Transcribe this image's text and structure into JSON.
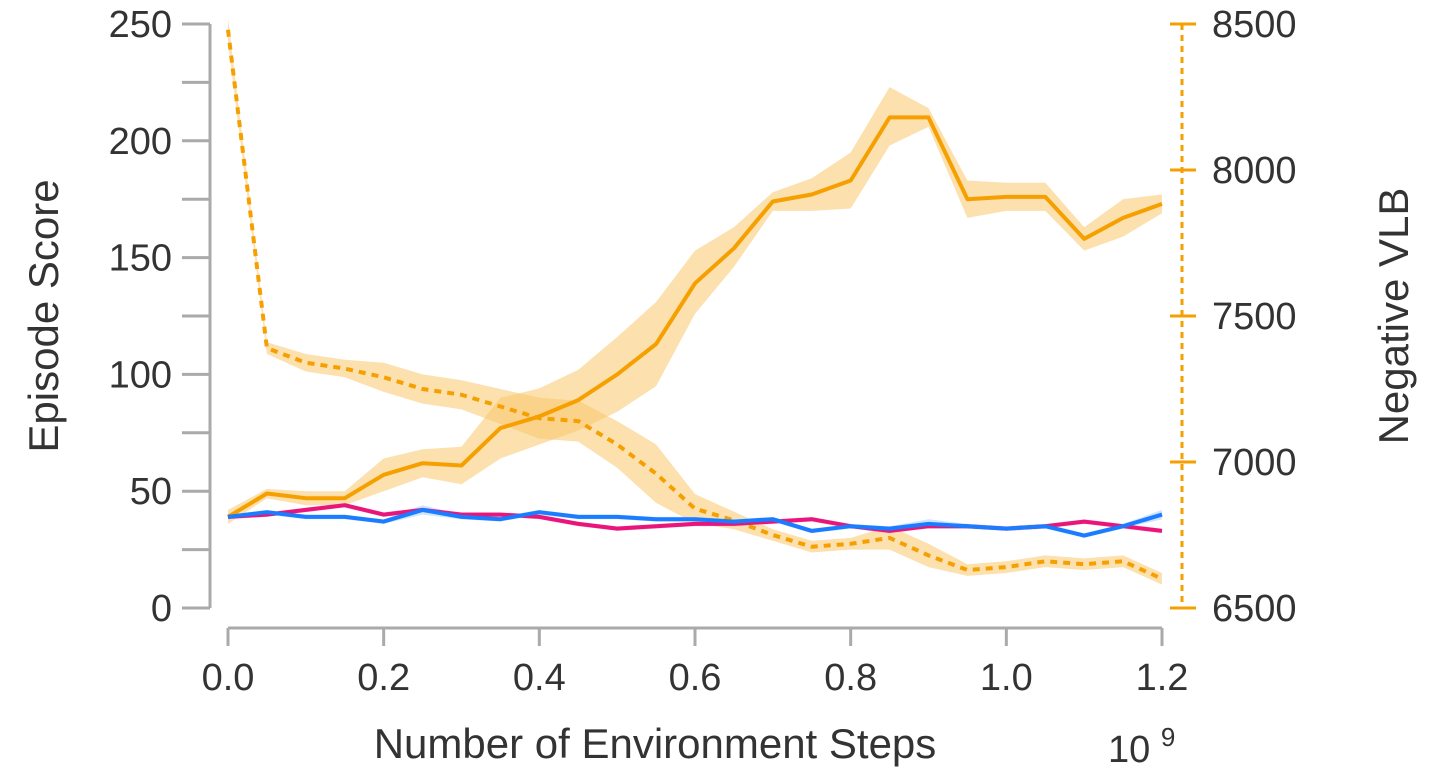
{
  "chart_data": {
    "type": "line",
    "xlabel": "Number of Environment Steps",
    "x_exponent_label": "10",
    "x_exponent_power": "9",
    "ylabel_left": "Episode Score",
    "ylabel_right": "Negative VLB",
    "xlim": [
      0,
      1.2
    ],
    "ylim_left": [
      0,
      250
    ],
    "ylim_right": [
      6500,
      8500
    ],
    "x_ticks": [
      "0.0",
      "0.2",
      "0.4",
      "0.6",
      "0.8",
      "1.0",
      "1.2"
    ],
    "x_tick_values": [
      0,
      0.2,
      0.4,
      0.6,
      0.8,
      1.0,
      1.2
    ],
    "y_left_ticks": [
      "0",
      "50",
      "100",
      "150",
      "200",
      "250"
    ],
    "y_left_tick_values": [
      0,
      50,
      100,
      150,
      200,
      250
    ],
    "y_left_minor_tick_values": [
      25,
      75,
      125,
      175,
      225
    ],
    "y_right_ticks": [
      "6500",
      "7000",
      "7500",
      "8000",
      "8500"
    ],
    "y_right_tick_values": [
      6500,
      7000,
      7500,
      8000,
      8500
    ],
    "x": [
      0,
      0.05,
      0.1,
      0.15,
      0.2,
      0.25,
      0.3,
      0.35,
      0.4,
      0.45,
      0.5,
      0.55,
      0.6,
      0.65,
      0.7,
      0.75,
      0.8,
      0.85,
      0.9,
      0.95,
      1.0,
      1.05,
      1.1,
      1.15,
      1.2
    ],
    "series": [
      {
        "axis": "left",
        "style": "solid",
        "color": "#f5a000",
        "band_color": "#f9c66b",
        "values": [
          39,
          49,
          47,
          47,
          57,
          62,
          61,
          77,
          82,
          89,
          100,
          113,
          139,
          154,
          174,
          177,
          183,
          210,
          210,
          175,
          176,
          176,
          158,
          167,
          173
        ],
        "band": [
          [
            36,
            42
          ],
          [
            47,
            51
          ],
          [
            44,
            50
          ],
          [
            44,
            50
          ],
          [
            50,
            64
          ],
          [
            56,
            68
          ],
          [
            53,
            69
          ],
          [
            64,
            90
          ],
          [
            70,
            94
          ],
          [
            76,
            102
          ],
          [
            84,
            116
          ],
          [
            95,
            131
          ],
          [
            126,
            153
          ],
          [
            146,
            163
          ],
          [
            170,
            178
          ],
          [
            170,
            184
          ],
          [
            171,
            195
          ],
          [
            198,
            223
          ],
          [
            206,
            214
          ],
          [
            167,
            183
          ],
          [
            170,
            182
          ],
          [
            170,
            182
          ],
          [
            153,
            163
          ],
          [
            159,
            175
          ],
          [
            169,
            177
          ]
        ]
      },
      {
        "axis": "right",
        "style": "dashed",
        "color": "#f5a000",
        "band_color": "#f9c66b",
        "values": [
          8480,
          7390,
          7340,
          7320,
          7290,
          7250,
          7230,
          7190,
          7150,
          7140,
          7060,
          6960,
          6840,
          6800,
          6750,
          6710,
          6720,
          6740,
          6680,
          6630,
          6640,
          6660,
          6650,
          6660,
          6600
        ],
        "band": [
          [
            8440,
            8520
          ],
          [
            7370,
            7410
          ],
          [
            7310,
            7370
          ],
          [
            7290,
            7350
          ],
          [
            7240,
            7340
          ],
          [
            7200,
            7300
          ],
          [
            7180,
            7280
          ],
          [
            7130,
            7250
          ],
          [
            7080,
            7220
          ],
          [
            7070,
            7210
          ],
          [
            6980,
            7140
          ],
          [
            6860,
            7060
          ],
          [
            6790,
            6890
          ],
          [
            6770,
            6830
          ],
          [
            6730,
            6770
          ],
          [
            6690,
            6730
          ],
          [
            6700,
            6740
          ],
          [
            6700,
            6780
          ],
          [
            6640,
            6720
          ],
          [
            6610,
            6650
          ],
          [
            6620,
            6660
          ],
          [
            6640,
            6680
          ],
          [
            6630,
            6670
          ],
          [
            6640,
            6680
          ],
          [
            6580,
            6620
          ]
        ]
      },
      {
        "axis": "left",
        "style": "solid",
        "color": "#e8157a",
        "band_color": "#f4a3c8",
        "values": [
          39,
          40,
          42,
          44,
          40,
          42,
          40,
          40,
          39,
          36,
          34,
          35,
          36,
          36,
          37,
          38,
          35,
          33,
          35,
          35,
          34,
          35,
          37,
          35,
          33
        ],
        "band": [
          [
            38,
            40
          ],
          [
            39,
            41
          ],
          [
            41,
            43
          ],
          [
            43,
            45
          ],
          [
            39,
            41
          ],
          [
            41,
            43
          ],
          [
            39,
            41
          ],
          [
            39,
            41
          ],
          [
            38,
            40
          ],
          [
            35,
            37
          ],
          [
            33,
            35
          ],
          [
            34,
            36
          ],
          [
            35,
            37
          ],
          [
            35,
            37
          ],
          [
            36,
            38
          ],
          [
            37,
            39
          ],
          [
            34,
            36
          ],
          [
            32,
            34
          ],
          [
            34,
            36
          ],
          [
            34,
            36
          ],
          [
            33,
            35
          ],
          [
            34,
            36
          ],
          [
            36,
            38
          ],
          [
            34,
            36
          ],
          [
            32,
            34
          ]
        ]
      },
      {
        "axis": "left",
        "style": "solid",
        "color": "#1a7cff",
        "band_color": "#a9ccff",
        "values": [
          39,
          41,
          39,
          39,
          37,
          42,
          39,
          38,
          41,
          39,
          39,
          38,
          38,
          37,
          38,
          33,
          35,
          34,
          36,
          35,
          34,
          35,
          31,
          35,
          40
        ],
        "band": [
          [
            38,
            40
          ],
          [
            40,
            42
          ],
          [
            38,
            40
          ],
          [
            38,
            40
          ],
          [
            36,
            38
          ],
          [
            40,
            44
          ],
          [
            38,
            40
          ],
          [
            37,
            39
          ],
          [
            40,
            42
          ],
          [
            38,
            40
          ],
          [
            38,
            40
          ],
          [
            37,
            39
          ],
          [
            37,
            39
          ],
          [
            36,
            38
          ],
          [
            37,
            39
          ],
          [
            32,
            34
          ],
          [
            34,
            36
          ],
          [
            33,
            35
          ],
          [
            34,
            38
          ],
          [
            34,
            36
          ],
          [
            33,
            35
          ],
          [
            34,
            36
          ],
          [
            30,
            32
          ],
          [
            34,
            36
          ],
          [
            38,
            42
          ]
        ]
      }
    ],
    "grid": false,
    "legend": "none"
  }
}
